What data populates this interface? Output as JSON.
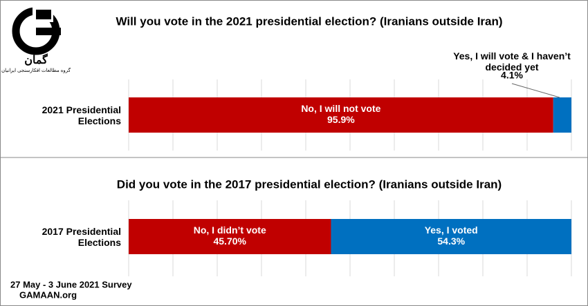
{
  "logo": {
    "name": "گمان",
    "subtitle": "گروه مطالعات افکارسنجی ایرانیان"
  },
  "footer": [
    "27 May - 3 June 2021 Survey",
    "GAMAAN.org"
  ],
  "chart_data": [
    {
      "type": "stacked-bar",
      "title": "Will you vote in the 2021 presidential election? (Iranians outside Iran)",
      "categories": [
        "2021 Presidential Elections"
      ],
      "series": [
        {
          "name": "No, I will not vote",
          "color": "#c00000",
          "values": [
            95.9
          ],
          "value_labels": [
            "95.9%"
          ]
        },
        {
          "name": "Yes, I will vote & I haven’t decided yet",
          "color": "#0070c0",
          "values": [
            4.1
          ],
          "value_labels": [
            "4.1%"
          ]
        }
      ],
      "xlim": [
        0,
        100
      ],
      "xticks": [
        0,
        10,
        20,
        30,
        40,
        50,
        60,
        70,
        80,
        90,
        100
      ],
      "grid": true
    },
    {
      "type": "stacked-bar",
      "title": "Did you vote in the 2017 presidential election? (Iranians outside Iran)",
      "categories": [
        "2017 Presidential Elections"
      ],
      "series": [
        {
          "name": "No, I didn’t vote",
          "color": "#c00000",
          "values": [
            45.7
          ],
          "value_labels": [
            "45.70%"
          ]
        },
        {
          "name": "Yes, I voted",
          "color": "#0070c0",
          "values": [
            54.3
          ],
          "value_labels": [
            "54.3%"
          ]
        }
      ],
      "xlim": [
        0,
        100
      ],
      "xticks": [
        0,
        10,
        20,
        30,
        40,
        50,
        60,
        70,
        80,
        90,
        100
      ],
      "grid": true
    }
  ]
}
